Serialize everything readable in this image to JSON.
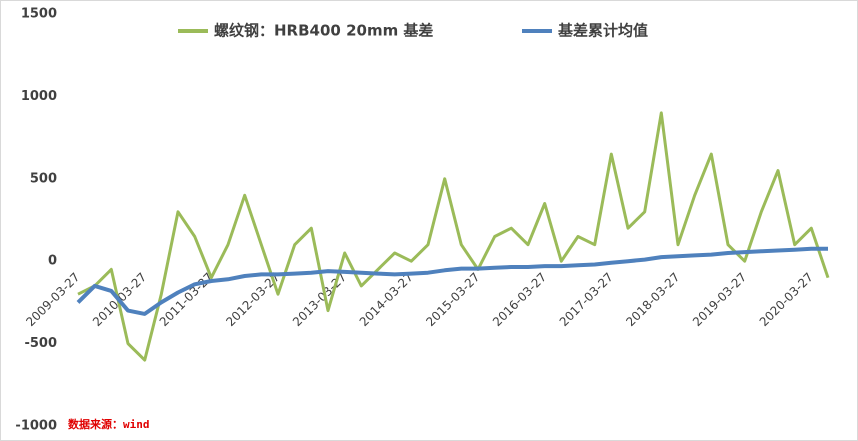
{
  "chart_data": {
    "type": "line",
    "categories": [
      "2009-03-27",
      null,
      null,
      null,
      "2010-03-27",
      null,
      null,
      null,
      "2011-03-27",
      null,
      null,
      null,
      "2012-03-27",
      null,
      null,
      null,
      "2013-03-27",
      null,
      null,
      null,
      "2014-03-27",
      null,
      null,
      null,
      "2015-03-27",
      null,
      null,
      null,
      "2016-03-27",
      null,
      null,
      null,
      "2017-03-27",
      null,
      null,
      null,
      "2018-03-27",
      null,
      null,
      null,
      "2019-03-27",
      null,
      null,
      null,
      "2020-03-27",
      null
    ],
    "series": [
      {
        "name": "螺纹钢：HRB400  20mm 基差",
        "color": "#9bbb59",
        "values": [
          -200,
          -150,
          -50,
          -500,
          -600,
          -200,
          300,
          150,
          -100,
          100,
          400,
          100,
          -200,
          100,
          200,
          -300,
          50,
          -150,
          -50,
          50,
          0,
          100,
          500,
          100,
          -50,
          150,
          200,
          100,
          350,
          0,
          150,
          100,
          650,
          200,
          300,
          900,
          100,
          400,
          650,
          100,
          0,
          300,
          550,
          100,
          200,
          -100
        ]
      },
      {
        "name": "基差累计均值",
        "color": "#4f81bd",
        "values": [
          -250,
          -150,
          -180,
          -300,
          -320,
          -250,
          -190,
          -140,
          -120,
          -110,
          -90,
          -80,
          -80,
          -75,
          -70,
          -60,
          -65,
          -70,
          -75,
          -80,
          -75,
          -70,
          -55,
          -45,
          -45,
          -40,
          -35,
          -35,
          -30,
          -30,
          -25,
          -20,
          -10,
          0,
          10,
          25,
          30,
          35,
          40,
          50,
          55,
          60,
          65,
          70,
          75,
          75
        ]
      }
    ],
    "ylim": [
      -1000,
      1500
    ],
    "yticks": [
      -1000,
      -500,
      0,
      500,
      1000,
      1500
    ],
    "annotation": "数据来源：wind"
  }
}
